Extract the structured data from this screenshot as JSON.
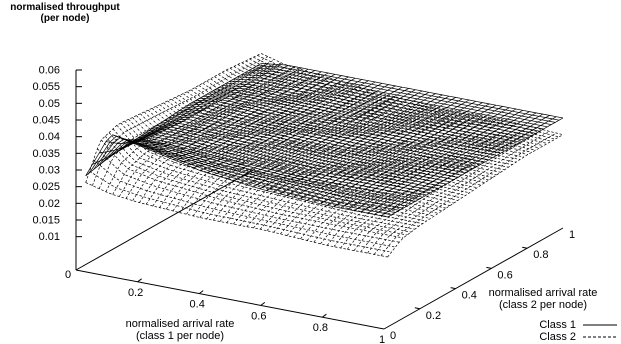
{
  "chart_data": {
    "type": "surface3d",
    "zlabel_line1": "normalised throughput",
    "zlabel_line2": "(per node)",
    "xlabel_line1": "normalised arrival rate",
    "xlabel_line2": "(class 1 per node)",
    "ylabel_line1": "normalised arrival rate",
    "ylabel_line2": "(class 2 per node)",
    "x_ticks": [
      "0",
      "0.2",
      "0.4",
      "0.6",
      "0.8",
      "1"
    ],
    "y_ticks": [
      "0",
      "0.2",
      "0.4",
      "0.6",
      "0.8",
      "1"
    ],
    "z_ticks": [
      "0.01",
      "0.015",
      "0.02",
      "0.025",
      "0.03",
      "0.035",
      "0.04",
      "0.045",
      "0.05",
      "0.055",
      "0.06"
    ],
    "x_tick_values": [
      0,
      0.2,
      0.4,
      0.6,
      0.8,
      1
    ],
    "y_tick_values": [
      0,
      0.2,
      0.4,
      0.6,
      0.8,
      1
    ],
    "z_tick_values": [
      0.01,
      0.015,
      0.02,
      0.025,
      0.03,
      0.035,
      0.04,
      0.045,
      0.05,
      0.055,
      0.06
    ],
    "xlim": [
      0,
      1
    ],
    "ylim": [
      0,
      1
    ],
    "zlim": [
      0.01,
      0.06
    ],
    "legend_position": "bottom-right",
    "series": [
      {
        "name": "Class 1",
        "line_style": "solid",
        "color": "#000000",
        "y": [
          0.02,
          0.1,
          0.2,
          0.4,
          0.6,
          0.8,
          1.0
        ],
        "x": [
          0.02,
          0.1,
          0.2,
          0.4,
          0.6,
          0.8,
          1.0
        ],
        "z": [
          [
            0.028,
            0.042,
            0.04,
            0.036,
            0.034,
            0.033,
            0.033
          ],
          [
            0.029,
            0.038,
            0.037,
            0.035,
            0.034,
            0.033,
            0.033
          ],
          [
            0.03,
            0.035,
            0.035,
            0.034,
            0.033,
            0.033,
            0.033
          ],
          [
            0.031,
            0.034,
            0.034,
            0.034,
            0.033,
            0.033,
            0.033
          ],
          [
            0.032,
            0.034,
            0.034,
            0.033,
            0.033,
            0.033,
            0.033
          ],
          [
            0.032,
            0.033,
            0.033,
            0.033,
            0.033,
            0.033,
            0.033
          ],
          [
            0.032,
            0.033,
            0.033,
            0.033,
            0.033,
            0.033,
            0.033
          ]
        ]
      },
      {
        "name": "Class 2",
        "line_style": "dashed",
        "color": "#000000",
        "y": [
          0.02,
          0.1,
          0.2,
          0.4,
          0.6,
          0.8,
          1.0
        ],
        "x": [
          0.02,
          0.1,
          0.2,
          0.4,
          0.6,
          0.8,
          1.0
        ],
        "z": [
          [
            0.026,
            0.024,
            0.023,
            0.022,
            0.022,
            0.021,
            0.021
          ],
          [
            0.036,
            0.029,
            0.027,
            0.025,
            0.024,
            0.024,
            0.024
          ],
          [
            0.038,
            0.031,
            0.029,
            0.027,
            0.026,
            0.025,
            0.025
          ],
          [
            0.037,
            0.032,
            0.03,
            0.028,
            0.027,
            0.027,
            0.026
          ],
          [
            0.036,
            0.032,
            0.031,
            0.029,
            0.028,
            0.027,
            0.027
          ],
          [
            0.036,
            0.033,
            0.031,
            0.03,
            0.029,
            0.028,
            0.028
          ],
          [
            0.035,
            0.033,
            0.032,
            0.03,
            0.029,
            0.029,
            0.028
          ]
        ]
      }
    ]
  }
}
